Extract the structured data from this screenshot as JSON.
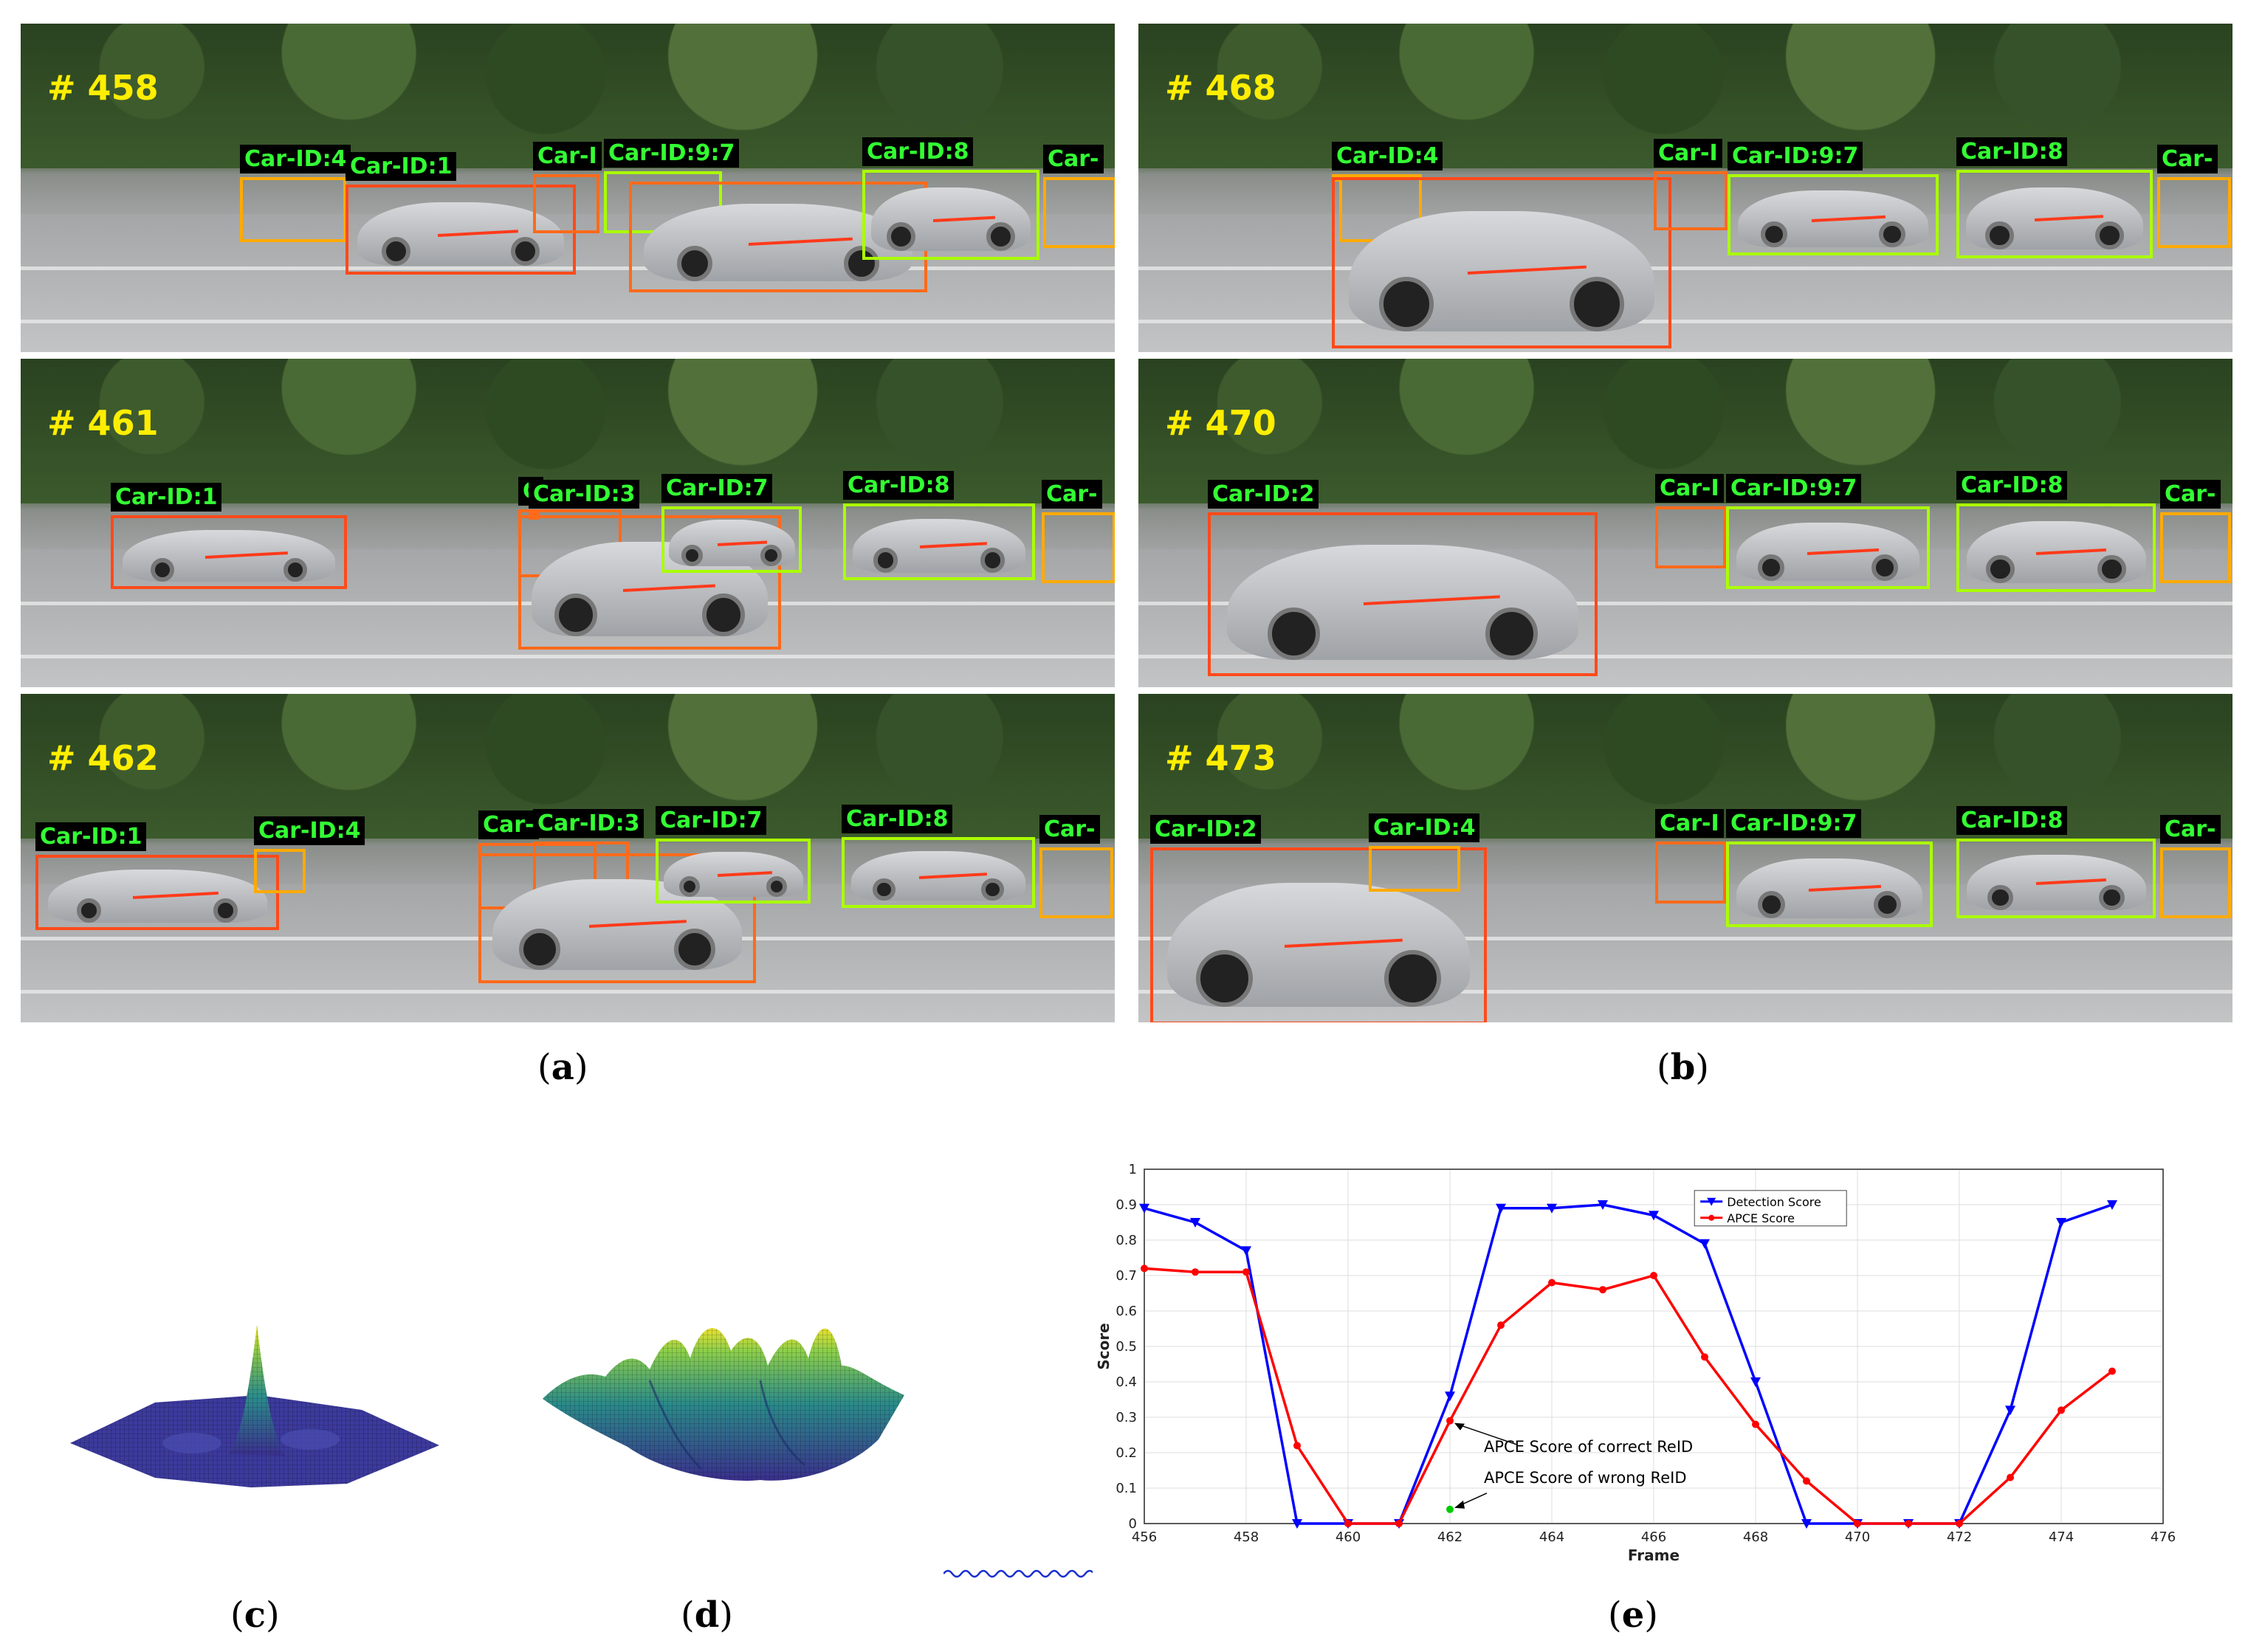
{
  "panels": [
    {
      "frame": "# 458",
      "tags": [
        "Car-ID:4",
        "Car-ID:1",
        "Car-I",
        "Car-ID:9:7",
        "Car-ID:8",
        "Car-"
      ]
    },
    {
      "frame": "# 468",
      "tags": [
        "C",
        "Car-ID:4",
        "Car-I",
        "Car-ID:9:7",
        "Car-ID:8",
        "Car-"
      ]
    },
    {
      "frame": "# 461",
      "tags": [
        "Car-ID:1",
        "C",
        "Car-ID:3",
        "Car-ID:7",
        "Car-ID:8",
        "Car-"
      ]
    },
    {
      "frame": "# 470",
      "tags": [
        "Car-ID:2",
        "Car-I",
        "Car-ID:9:7",
        "Car-ID:8",
        "Car-"
      ]
    },
    {
      "frame": "# 462",
      "tags": [
        "Car-ID:1",
        "Car-ID:4",
        "Car-",
        "Car-ID:3",
        "Car-ID:7",
        "Car-ID:8",
        "Car-"
      ]
    },
    {
      "frame": "# 473",
      "tags": [
        "Car-ID:2",
        "Car-ID:4",
        "Car-I",
        "Car-ID:9:7",
        "Car-ID:8",
        "Car-"
      ]
    }
  ],
  "labels": {
    "a": "a",
    "b": "b",
    "c": "c",
    "d": "d",
    "e": "e"
  },
  "colors": {
    "box_orange": "#ff6a1a",
    "box_yellow": "#ffaa00",
    "box_green": "#aaff00",
    "detection": "#0000ff",
    "apce": "#ff0000",
    "wrong": "#00cc00"
  },
  "chart_data": {
    "type": "line",
    "xlabel": "Frame",
    "ylabel": "Score",
    "xlim": [
      456,
      476
    ],
    "ylim": [
      0,
      1
    ],
    "xticks": [
      456,
      458,
      460,
      462,
      464,
      466,
      468,
      470,
      472,
      474,
      476
    ],
    "yticks": [
      0,
      0.1,
      0.2,
      0.3,
      0.4,
      0.5,
      0.6,
      0.7,
      0.8,
      0.9,
      1
    ],
    "ytick_labels": [
      "0",
      "0.1",
      "0.2",
      "0.3",
      "0.4",
      "0.5",
      "0.6",
      "0.7",
      "0.8",
      "0.9",
      "1"
    ],
    "grid": true,
    "legend": "top-right",
    "series": [
      {
        "name": "Detection Score",
        "color": "#0000ff",
        "marker": "triangle-down",
        "x": [
          456,
          457,
          458,
          459,
          460,
          461,
          462,
          463,
          464,
          465,
          466,
          467,
          468,
          469,
          470,
          471,
          472,
          473,
          474,
          475
        ],
        "y": [
          0.89,
          0.85,
          0.77,
          0,
          0,
          0,
          0.36,
          0.89,
          0.89,
          0.9,
          0.87,
          0.79,
          0.4,
          0,
          0,
          0,
          0,
          0.32,
          0.85,
          0.9
        ]
      },
      {
        "name": "APCE Score",
        "color": "#ff0000",
        "marker": "circle",
        "x": [
          456,
          457,
          458,
          459,
          460,
          461,
          462,
          463,
          464,
          465,
          466,
          467,
          468,
          469,
          470,
          471,
          472,
          473,
          474,
          475
        ],
        "y": [
          0.72,
          0.71,
          0.71,
          0.22,
          0,
          0,
          0.29,
          0.56,
          0.68,
          0.66,
          0.7,
          0.47,
          0.28,
          0.12,
          0,
          0,
          0,
          0.13,
          0.32,
          0.43
        ]
      }
    ],
    "extra_point": {
      "x": 462,
      "y": 0.04,
      "color": "#00cc00"
    },
    "annotations": [
      {
        "text": "APCE Score of correct ReID",
        "x": 462,
        "y": 0.29
      },
      {
        "text": "APCE Score of wrong ReID",
        "x": 462,
        "y": 0.04
      }
    ]
  }
}
